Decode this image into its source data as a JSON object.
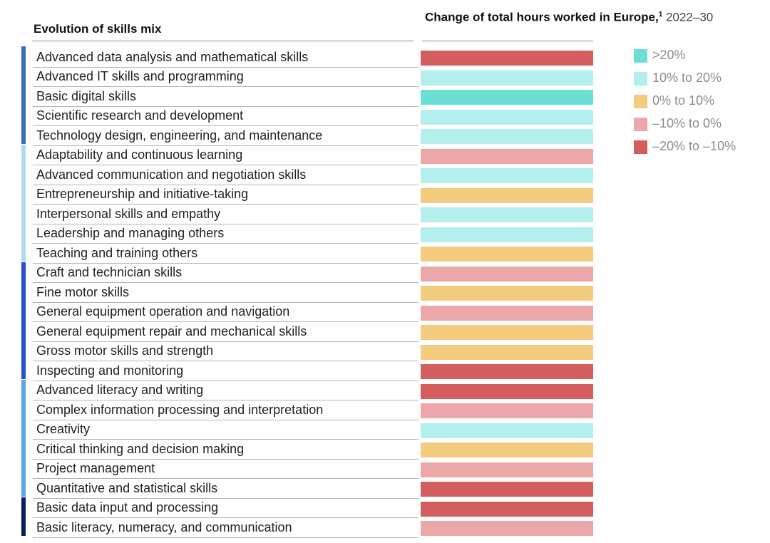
{
  "chart_data": {
    "type": "table",
    "title": "Change of total hours worked in Europe,",
    "title_footnote": "1",
    "title_period": "2022–30",
    "column_title": "Evolution of skills mix",
    "legend": [
      {
        "key": "gt20",
        "label": ">20%",
        "color": "#69dfd5"
      },
      {
        "key": "10to20",
        "label": "10% to 20%",
        "color": "#b3efed"
      },
      {
        "key": "0to10",
        "label": "0% to 10%",
        "color": "#f4cc80"
      },
      {
        "key": "m10to0",
        "label": "–10% to 0%",
        "color": "#eca8a8"
      },
      {
        "key": "m20tom10",
        "label": "–20% to –10%",
        "color": "#d45d5d"
      }
    ],
    "groups": [
      {
        "color": "#3a6fb5",
        "rows": [
          0,
          4
        ]
      },
      {
        "color": "#aedcf2",
        "rows": [
          5,
          10
        ]
      },
      {
        "color": "#2a4fd6",
        "rows": [
          11,
          16
        ]
      },
      {
        "color": "#58a8e2",
        "rows": [
          17,
          22
        ]
      },
      {
        "color": "#0b1f5c",
        "rows": [
          23,
          24
        ]
      }
    ],
    "rows": [
      {
        "label": "Advanced data analysis and mathematical skills",
        "category": "m20tom10"
      },
      {
        "label": "Advanced IT skills and programming",
        "category": "10to20"
      },
      {
        "label": "Basic digital skills",
        "category": "gt20"
      },
      {
        "label": "Scientific research and development",
        "category": "10to20"
      },
      {
        "label": "Technology design, engineering, and maintenance",
        "category": "10to20"
      },
      {
        "label": "Adaptability and continuous learning",
        "category": "m10to0"
      },
      {
        "label": "Advanced communication and negotiation skills",
        "category": "10to20"
      },
      {
        "label": "Entrepreneurship and initiative-taking",
        "category": "0to10"
      },
      {
        "label": "Interpersonal skills and empathy",
        "category": "10to20"
      },
      {
        "label": "Leadership and managing others",
        "category": "10to20"
      },
      {
        "label": "Teaching and training others",
        "category": "0to10"
      },
      {
        "label": "Craft and technician skills",
        "category": "m10to0"
      },
      {
        "label": "Fine motor skills",
        "category": "0to10"
      },
      {
        "label": "General equipment operation and navigation",
        "category": "m10to0"
      },
      {
        "label": "General equipment repair and mechanical skills",
        "category": "0to10"
      },
      {
        "label": "Gross motor skills and strength",
        "category": "0to10"
      },
      {
        "label": "Inspecting and monitoring",
        "category": "m20tom10"
      },
      {
        "label": "Advanced literacy and writing",
        "category": "m20tom10"
      },
      {
        "label": "Complex information processing and interpretation",
        "category": "m10to0"
      },
      {
        "label": "Creativity",
        "category": "10to20"
      },
      {
        "label": "Critical thinking and decision making",
        "category": "0to10"
      },
      {
        "label": "Project management",
        "category": "m10to0"
      },
      {
        "label": "Quantitative and statistical skills",
        "category": "m20tom10"
      },
      {
        "label": "Basic data input and processing",
        "category": "m20tom10"
      },
      {
        "label": "Basic literacy, numeracy, and communication",
        "category": "m10to0"
      }
    ]
  }
}
